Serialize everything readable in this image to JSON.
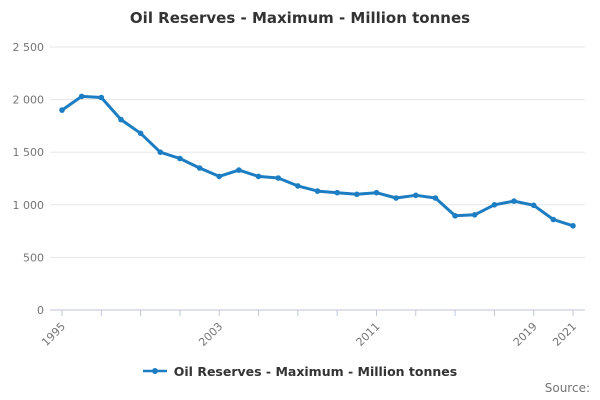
{
  "title": "Oil Reserves - Maximum - Million tonnes",
  "legend": {
    "label": "Oil Reserves - Maximum - Million tonnes"
  },
  "source_label": "Source:",
  "colors": {
    "line": "#1d7dc2",
    "title_text": "#333333",
    "axis_text": "#757575",
    "axis_line": "#bdc6d8",
    "grid": "#e7e7e7",
    "legend_text": "#333333",
    "source_text": "#757575"
  },
  "chart_data": {
    "type": "line",
    "title": "Oil Reserves - Maximum - Million tonnes",
    "series_name": "Oil Reserves - Maximum - Million tonnes",
    "x": [
      1995,
      1996,
      1997,
      1998,
      1999,
      2000,
      2001,
      2002,
      2003,
      2004,
      2005,
      2006,
      2007,
      2008,
      2009,
      2010,
      2011,
      2012,
      2013,
      2014,
      2015,
      2016,
      2017,
      2018,
      2019,
      2020,
      2021
    ],
    "values": [
      1900,
      2030,
      2020,
      1810,
      1680,
      1500,
      1440,
      1350,
      1270,
      1330,
      1270,
      1255,
      1180,
      1130,
      1115,
      1100,
      1115,
      1065,
      1090,
      1065,
      895,
      905,
      1000,
      1035,
      995,
      860,
      800
    ],
    "ylim": [
      0,
      2500
    ],
    "yticks": [
      {
        "v": 0,
        "label": "0"
      },
      {
        "v": 500,
        "label": "500"
      },
      {
        "v": 1000,
        "label": "1 000"
      },
      {
        "v": 1500,
        "label": "1 500"
      },
      {
        "v": 2000,
        "label": "2 000"
      },
      {
        "v": 2500,
        "label": "2 500"
      }
    ],
    "xticks_minor": [
      1995,
      1997,
      1999,
      2001,
      2003,
      2005,
      2007,
      2009,
      2011,
      2013,
      2015,
      2017,
      2019,
      2021
    ],
    "xtick_labels": [
      {
        "year": 1995,
        "label": "1995"
      },
      {
        "year": 2003,
        "label": "2003"
      },
      {
        "year": 2011,
        "label": "2011"
      },
      {
        "year": 2019,
        "label": "2019"
      },
      {
        "year": 2021,
        "label": "2021"
      }
    ],
    "grid": "horizontal",
    "legend_position": "bottom-center",
    "marker": "circle"
  }
}
